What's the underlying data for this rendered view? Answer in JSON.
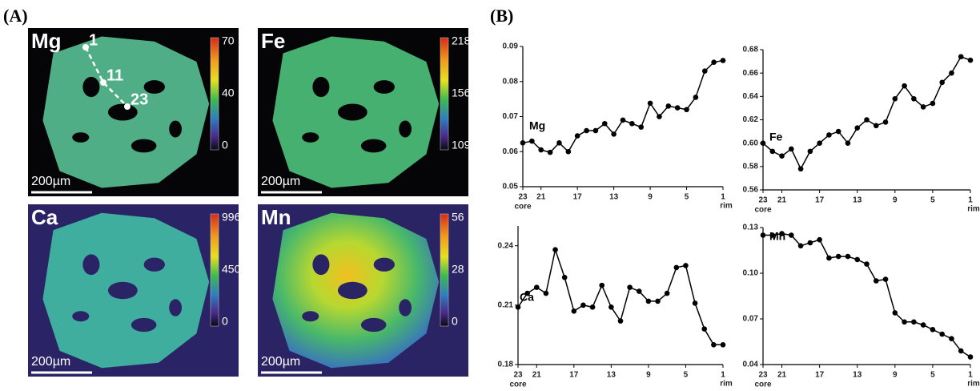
{
  "panel_labels": [
    "(A)",
    "(B)"
  ],
  "maps": [
    {
      "label": "Mg",
      "colorbar_ticks": [
        70,
        40,
        0
      ],
      "scale_bar": "200µm",
      "profile_points": [
        "1",
        "11",
        "23"
      ]
    },
    {
      "label": "Fe",
      "colorbar_ticks": [
        218,
        156,
        109
      ],
      "scale_bar": "200µm"
    },
    {
      "label": "Ca",
      "colorbar_ticks": [
        996,
        450,
        0
      ],
      "scale_bar": "200µm"
    },
    {
      "label": "Mn",
      "colorbar_ticks": [
        56,
        28,
        0
      ],
      "scale_bar": "200µm"
    }
  ],
  "chart_data": [
    {
      "type": "line",
      "annotation": "Mg",
      "color": "#000000",
      "x": [
        23,
        22,
        21,
        20,
        19,
        18,
        17,
        16,
        15,
        14,
        13,
        12,
        11,
        10,
        9,
        8,
        7,
        6,
        5,
        4,
        3,
        2,
        1
      ],
      "values": [
        0.0625,
        0.063,
        0.0605,
        0.0598,
        0.0625,
        0.06,
        0.0645,
        0.066,
        0.066,
        0.068,
        0.065,
        0.069,
        0.068,
        0.067,
        0.0738,
        0.07,
        0.073,
        0.0725,
        0.072,
        0.0755,
        0.083,
        0.0855,
        0.086
      ],
      "xlim": [
        23,
        1
      ],
      "xticks": [
        23,
        21,
        17,
        13,
        9,
        5,
        1
      ],
      "x_start_label": "core",
      "x_end_label": "rim",
      "ylim": [
        0.05,
        0.09
      ],
      "yticks": [
        0.05,
        0.06,
        0.07,
        0.08,
        0.09
      ]
    },
    {
      "type": "line",
      "annotation": "Fe",
      "color": "#000000",
      "x": [
        23,
        22,
        21,
        20,
        19,
        18,
        17,
        16,
        15,
        14,
        13,
        12,
        11,
        10,
        9,
        8,
        7,
        6,
        5,
        4,
        3,
        2,
        1
      ],
      "values": [
        0.6,
        0.593,
        0.589,
        0.595,
        0.578,
        0.593,
        0.6,
        0.607,
        0.61,
        0.6,
        0.613,
        0.62,
        0.615,
        0.618,
        0.638,
        0.649,
        0.638,
        0.631,
        0.634,
        0.652,
        0.66,
        0.674,
        0.671
      ],
      "xlim": [
        23,
        1
      ],
      "xticks": [
        23,
        21,
        17,
        13,
        9,
        5,
        1
      ],
      "x_start_label": "core",
      "x_end_label": "rim",
      "ylim": [
        0.56,
        0.68
      ],
      "yticks": [
        0.56,
        0.58,
        {
          "value": 0.6,
          "label": "0.60"
        },
        0.62,
        0.64,
        0.66,
        0.68
      ]
    },
    {
      "type": "line",
      "annotation": "Ca",
      "color": "#000000",
      "x": [
        23,
        22,
        21,
        20,
        19,
        18,
        17,
        16,
        15,
        14,
        13,
        12,
        11,
        10,
        9,
        8,
        7,
        6,
        5,
        4,
        3,
        2,
        1
      ],
      "values": [
        0.209,
        0.216,
        0.219,
        0.216,
        0.238,
        0.224,
        0.207,
        0.21,
        0.209,
        0.22,
        0.209,
        0.202,
        0.219,
        0.217,
        0.212,
        0.212,
        0.216,
        0.229,
        0.23,
        0.211,
        0.198,
        0.19,
        0.19
      ],
      "xlim": [
        23,
        1
      ],
      "xticks": [
        23,
        21,
        17,
        13,
        9,
        5,
        1
      ],
      "x_start_label": "core",
      "x_end_label": "rim",
      "ylim": [
        0.18,
        0.25
      ],
      "yticks": [
        0.18,
        0.21,
        0.24
      ]
    },
    {
      "type": "line",
      "annotation": "Mn",
      "color": "#000000",
      "x": [
        23,
        22,
        21,
        20,
        19,
        18,
        17,
        16,
        15,
        14,
        13,
        12,
        11,
        10,
        9,
        8,
        7,
        6,
        5,
        4,
        3,
        2,
        1
      ],
      "values": [
        0.125,
        0.125,
        0.126,
        0.125,
        0.118,
        0.12,
        0.122,
        0.11,
        0.111,
        0.111,
        0.109,
        0.106,
        0.095,
        0.096,
        0.074,
        0.068,
        0.068,
        0.066,
        0.063,
        0.06,
        0.057,
        0.049,
        0.045
      ],
      "xlim": [
        23,
        1
      ],
      "xticks": [
        23,
        21,
        17,
        13,
        9,
        5,
        1
      ],
      "x_start_label": "core",
      "x_end_label": "rim",
      "ylim": [
        0.04,
        0.13
      ],
      "yticks": [
        0.04,
        0.07,
        {
          "value": 0.1,
          "label": "0.10"
        },
        0.13
      ]
    }
  ]
}
